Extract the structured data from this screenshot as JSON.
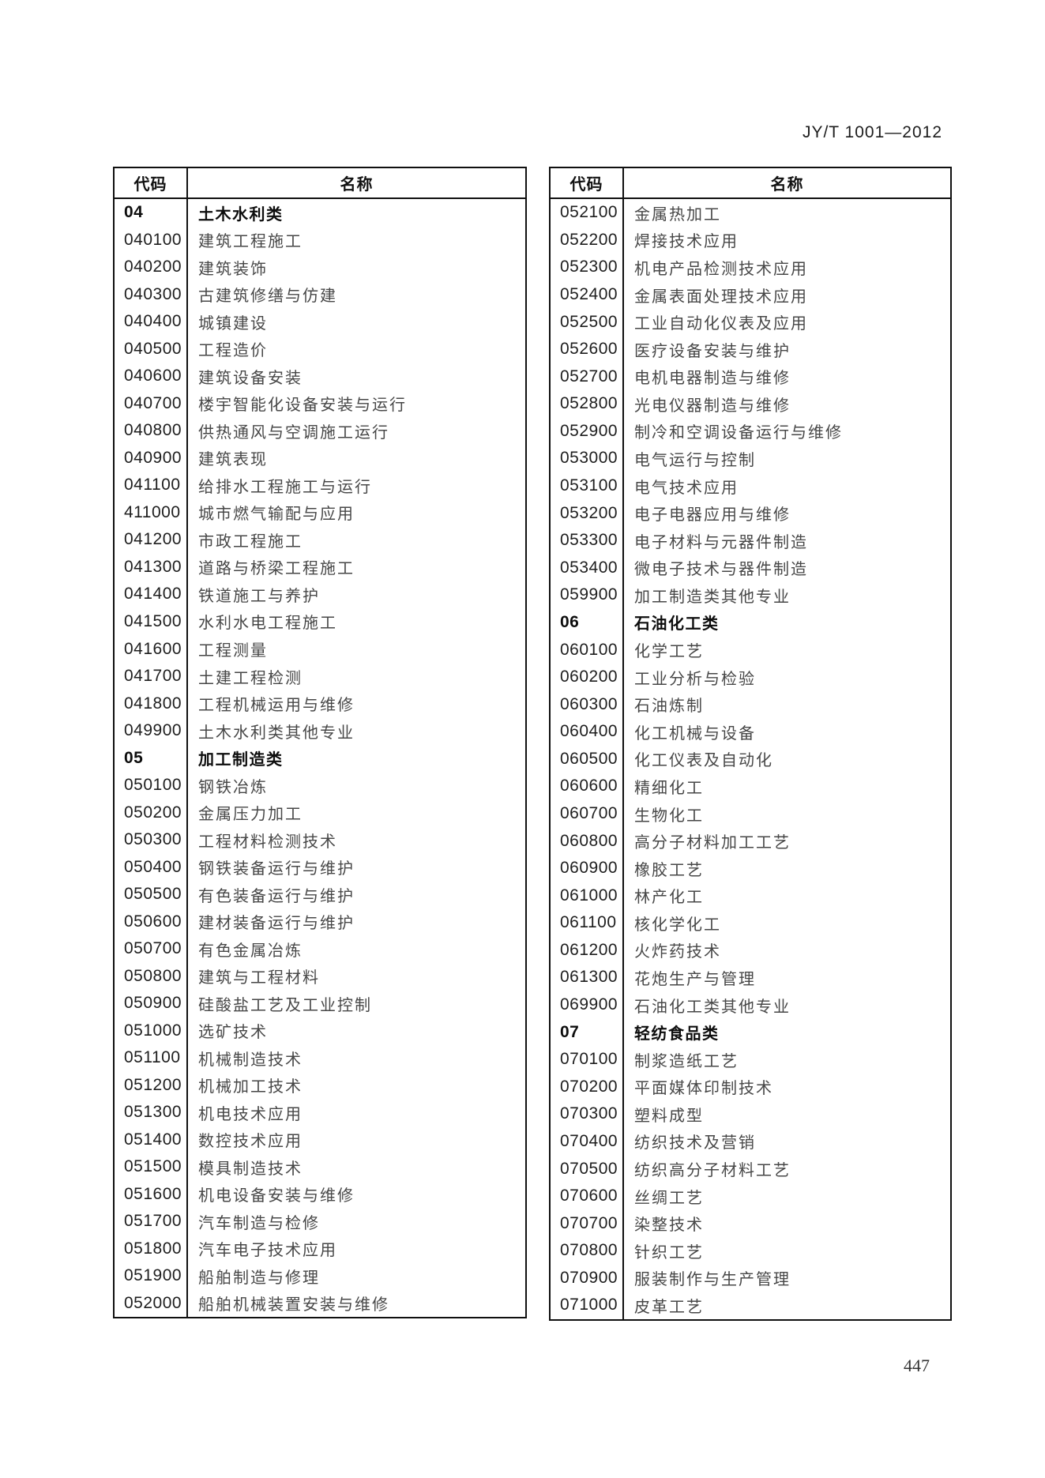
{
  "page": {
    "header": "JY/T 1001—2012",
    "page_number": "447"
  },
  "table_headers": {
    "code": "代码",
    "name": "名称"
  },
  "left_table": {
    "rows": [
      {
        "code": "04",
        "name": "土木水利类",
        "bold": true
      },
      {
        "code": "040100",
        "name": "建筑工程施工"
      },
      {
        "code": "040200",
        "name": "建筑装饰"
      },
      {
        "code": "040300",
        "name": "古建筑修缮与仿建"
      },
      {
        "code": "040400",
        "name": "城镇建设"
      },
      {
        "code": "040500",
        "name": "工程造价"
      },
      {
        "code": "040600",
        "name": "建筑设备安装"
      },
      {
        "code": "040700",
        "name": "楼宇智能化设备安装与运行"
      },
      {
        "code": "040800",
        "name": "供热通风与空调施工运行"
      },
      {
        "code": "040900",
        "name": "建筑表现"
      },
      {
        "code": "041100",
        "name": "给排水工程施工与运行"
      },
      {
        "code": "411000",
        "name": "城市燃气输配与应用"
      },
      {
        "code": "041200",
        "name": "市政工程施工"
      },
      {
        "code": "041300",
        "name": "道路与桥梁工程施工"
      },
      {
        "code": "041400",
        "name": "铁道施工与养护"
      },
      {
        "code": "041500",
        "name": "水利水电工程施工"
      },
      {
        "code": "041600",
        "name": "工程测量"
      },
      {
        "code": "041700",
        "name": "土建工程检测"
      },
      {
        "code": "041800",
        "name": "工程机械运用与维修"
      },
      {
        "code": "049900",
        "name": "土木水利类其他专业"
      },
      {
        "code": "05",
        "name": "加工制造类",
        "bold": true
      },
      {
        "code": "050100",
        "name": "钢铁冶炼"
      },
      {
        "code": "050200",
        "name": "金属压力加工"
      },
      {
        "code": "050300",
        "name": "工程材料检测技术"
      },
      {
        "code": "050400",
        "name": "钢铁装备运行与维护"
      },
      {
        "code": "050500",
        "name": "有色装备运行与维护"
      },
      {
        "code": "050600",
        "name": "建材装备运行与维护"
      },
      {
        "code": "050700",
        "name": "有色金属冶炼"
      },
      {
        "code": "050800",
        "name": "建筑与工程材料"
      },
      {
        "code": "050900",
        "name": "硅酸盐工艺及工业控制"
      },
      {
        "code": "051000",
        "name": "选矿技术"
      },
      {
        "code": "051100",
        "name": "机械制造技术"
      },
      {
        "code": "051200",
        "name": "机械加工技术"
      },
      {
        "code": "051300",
        "name": "机电技术应用"
      },
      {
        "code": "051400",
        "name": "数控技术应用"
      },
      {
        "code": "051500",
        "name": "模具制造技术"
      },
      {
        "code": "051600",
        "name": "机电设备安装与维修"
      },
      {
        "code": "051700",
        "name": "汽车制造与检修"
      },
      {
        "code": "051800",
        "name": "汽车电子技术应用"
      },
      {
        "code": "051900",
        "name": "船舶制造与修理"
      },
      {
        "code": "052000",
        "name": "船舶机械装置安装与维修"
      }
    ]
  },
  "right_table": {
    "rows": [
      {
        "code": "052100",
        "name": "金属热加工"
      },
      {
        "code": "052200",
        "name": "焊接技术应用"
      },
      {
        "code": "052300",
        "name": "机电产品检测技术应用"
      },
      {
        "code": "052400",
        "name": "金属表面处理技术应用"
      },
      {
        "code": "052500",
        "name": "工业自动化仪表及应用"
      },
      {
        "code": "052600",
        "name": "医疗设备安装与维护"
      },
      {
        "code": "052700",
        "name": "电机电器制造与维修"
      },
      {
        "code": "052800",
        "name": "光电仪器制造与维修"
      },
      {
        "code": "052900",
        "name": "制冷和空调设备运行与维修"
      },
      {
        "code": "053000",
        "name": "电气运行与控制"
      },
      {
        "code": "053100",
        "name": "电气技术应用"
      },
      {
        "code": "053200",
        "name": "电子电器应用与维修"
      },
      {
        "code": "053300",
        "name": "电子材料与元器件制造"
      },
      {
        "code": "053400",
        "name": "微电子技术与器件制造"
      },
      {
        "code": "059900",
        "name": "加工制造类其他专业"
      },
      {
        "code": "06",
        "name": "石油化工类",
        "bold": true
      },
      {
        "code": "060100",
        "name": "化学工艺"
      },
      {
        "code": "060200",
        "name": "工业分析与检验"
      },
      {
        "code": "060300",
        "name": "石油炼制"
      },
      {
        "code": "060400",
        "name": "化工机械与设备"
      },
      {
        "code": "060500",
        "name": "化工仪表及自动化"
      },
      {
        "code": "060600",
        "name": "精细化工"
      },
      {
        "code": "060700",
        "name": "生物化工"
      },
      {
        "code": "060800",
        "name": "高分子材料加工工艺"
      },
      {
        "code": "060900",
        "name": "橡胶工艺"
      },
      {
        "code": "061000",
        "name": "林产化工"
      },
      {
        "code": "061100",
        "name": "核化学化工"
      },
      {
        "code": "061200",
        "name": "火炸药技术"
      },
      {
        "code": "061300",
        "name": "花炮生产与管理"
      },
      {
        "code": "069900",
        "name": "石油化工类其他专业"
      },
      {
        "code": "07",
        "name": "轻纺食品类",
        "bold": true
      },
      {
        "code": "070100",
        "name": "制浆造纸工艺"
      },
      {
        "code": "070200",
        "name": "平面媒体印制技术"
      },
      {
        "code": "070300",
        "name": "塑料成型"
      },
      {
        "code": "070400",
        "name": "纺织技术及营销"
      },
      {
        "code": "070500",
        "name": "纺织高分子材料工艺"
      },
      {
        "code": "070600",
        "name": "丝绸工艺"
      },
      {
        "code": "070700",
        "name": "染整技术"
      },
      {
        "code": "070800",
        "name": "针织工艺"
      },
      {
        "code": "070900",
        "name": "服装制作与生产管理"
      },
      {
        "code": "071000",
        "name": "皮革工艺"
      }
    ]
  }
}
